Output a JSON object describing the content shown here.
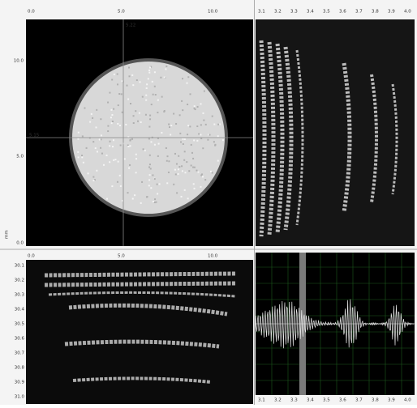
{
  "c_scan": {
    "x_ticks": [
      "0.0",
      "5.0",
      "10.0"
    ],
    "y_ticks": [
      "10.0",
      "5.0",
      "0.0"
    ],
    "cursor_x": "5.22",
    "cursor_y": "5.15",
    "y_axis_label": "mm"
  },
  "b_scan": {
    "x_ticks": [
      "3.1",
      "3.2",
      "3.3",
      "3.4",
      "3.5",
      "3.6",
      "3.7",
      "3.8",
      "3.9",
      "4.0"
    ]
  },
  "d_scan": {
    "x_ticks": [
      "0.0",
      "5.0",
      "10.0"
    ],
    "y_ticks": [
      "30.1",
      "30.2",
      "30.3",
      "30.4",
      "30.5",
      "30.6",
      "30.7",
      "30.8",
      "30.9",
      "31.0"
    ]
  },
  "a_scan": {
    "x_ticks": [
      "3.1",
      "3.2",
      "3.3",
      "3.4",
      "3.5",
      "3.6",
      "3.7",
      "3.8",
      "3.9",
      "4.0"
    ]
  }
}
